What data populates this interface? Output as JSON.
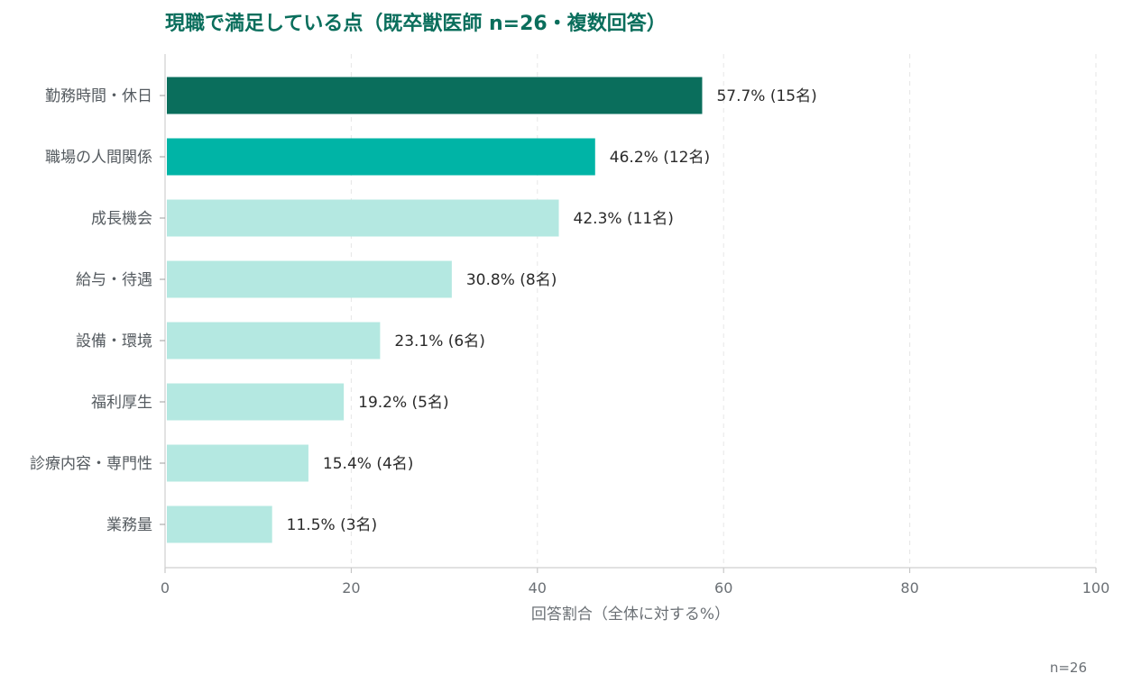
{
  "chart_data": {
    "type": "bar",
    "orientation": "horizontal",
    "title": "現職で満足している点（既卒獣医師 n=26・複数回答）",
    "xlabel": "回答割合（全体に対する%）",
    "ylabel": "",
    "xlim": [
      0,
      100
    ],
    "xticks": [
      0,
      20,
      40,
      60,
      80,
      100
    ],
    "grid": "vertical dashed",
    "categories": [
      "勤務時間・休日",
      "職場の人間関係",
      "成長機会",
      "給与・待遇",
      "設備・環境",
      "福利厚生",
      "診療内容・専門性",
      "業務量"
    ],
    "values": [
      57.7,
      46.2,
      42.3,
      30.8,
      23.1,
      19.2,
      15.4,
      11.5
    ],
    "counts": [
      15,
      12,
      11,
      8,
      6,
      5,
      4,
      3
    ],
    "data_labels": [
      "57.7% (15名)",
      "46.2% (12名)",
      "42.3% (11名)",
      "30.8% (8名)",
      "23.1% (6名)",
      "19.2% (5名)",
      "15.4% (4名)",
      "11.5% (3名)"
    ],
    "colors": [
      "#0a6e5c",
      "#00b4a6",
      "#b4e8e1",
      "#b4e8e1",
      "#b4e8e1",
      "#b4e8e1",
      "#b4e8e1",
      "#b4e8e1"
    ],
    "title_color": "#0a6e5c",
    "note": "n=26"
  }
}
